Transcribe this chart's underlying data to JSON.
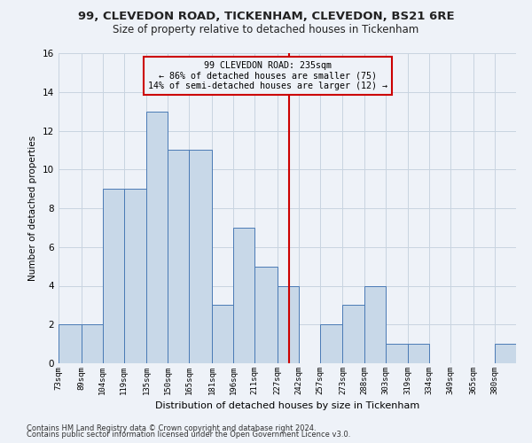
{
  "title1": "99, CLEVEDON ROAD, TICKENHAM, CLEVEDON, BS21 6RE",
  "title2": "Size of property relative to detached houses in Tickenham",
  "xlabel": "Distribution of detached houses by size in Tickenham",
  "ylabel": "Number of detached properties",
  "footnote1": "Contains HM Land Registry data © Crown copyright and database right 2024.",
  "footnote2": "Contains public sector information licensed under the Open Government Licence v3.0.",
  "bin_labels": [
    "73sqm",
    "89sqm",
    "104sqm",
    "119sqm",
    "135sqm",
    "150sqm",
    "165sqm",
    "181sqm",
    "196sqm",
    "211sqm",
    "227sqm",
    "242sqm",
    "257sqm",
    "273sqm",
    "288sqm",
    "303sqm",
    "319sqm",
    "334sqm",
    "349sqm",
    "365sqm",
    "380sqm"
  ],
  "bar_heights": [
    2,
    2,
    9,
    9,
    13,
    11,
    11,
    3,
    7,
    5,
    4,
    0,
    2,
    3,
    4,
    1,
    1,
    0,
    0,
    0,
    1
  ],
  "bar_color": "#c8d8e8",
  "bar_edgecolor": "#4a7ab5",
  "bin_edges": [
    73,
    89,
    104,
    119,
    135,
    150,
    165,
    181,
    196,
    211,
    227,
    242,
    257,
    273,
    288,
    303,
    319,
    334,
    349,
    365,
    380,
    395
  ],
  "red_line_x": 235,
  "annotation_title": "99 CLEVEDON ROAD: 235sqm",
  "annotation_line1": "← 86% of detached houses are smaller (75)",
  "annotation_line2": "14% of semi-detached houses are larger (12) →",
  "vline_color": "#cc0000",
  "annotation_box_color": "#cc0000",
  "ylim": [
    0,
    16
  ],
  "yticks": [
    0,
    2,
    4,
    6,
    8,
    10,
    12,
    14,
    16
  ],
  "grid_color": "#c8d4e0",
  "bg_color": "#eef2f8"
}
